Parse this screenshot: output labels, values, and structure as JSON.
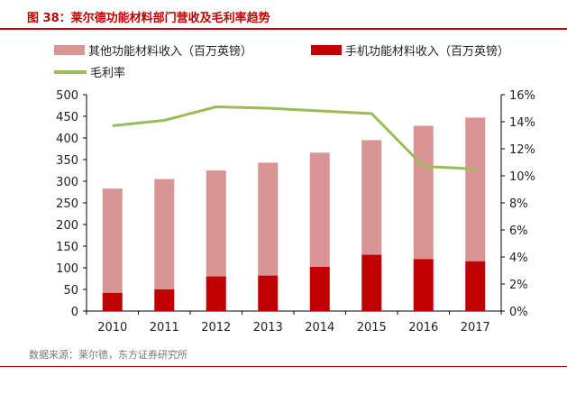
{
  "header": {
    "title": "图 38：莱尔德功能材料部门营收及毛利率趋势"
  },
  "source": "数据来源：莱尔德，东方证券研究所",
  "colors": {
    "other": "#d99594",
    "phone": "#c00000",
    "margin": "#9bbb59",
    "title": "#c00000",
    "axis": "#000000"
  },
  "chart_data": {
    "type": "bar",
    "stacked": true,
    "categories": [
      "2010",
      "2011",
      "2012",
      "2013",
      "2014",
      "2015",
      "2016",
      "2017"
    ],
    "series": [
      {
        "name": "手机功能材料收入（百万英镑）",
        "values": [
          42,
          50,
          80,
          82,
          102,
          130,
          120,
          115
        ]
      },
      {
        "name": "其他功能材料收入（百万英镑）",
        "values": [
          241,
          255,
          245,
          261,
          264,
          265,
          308,
          332
        ]
      }
    ],
    "line_series": {
      "name": "毛利率",
      "axis": "right",
      "values": [
        13.7,
        14.1,
        15.1,
        15.0,
        14.8,
        14.6,
        10.7,
        10.5
      ]
    },
    "ylim": [
      0,
      500
    ],
    "yticks": [
      0,
      50,
      100,
      150,
      200,
      250,
      300,
      350,
      400,
      450,
      500
    ],
    "y2lim": [
      0,
      16
    ],
    "y2ticks": [
      "0%",
      "2%",
      "4%",
      "6%",
      "8%",
      "10%",
      "12%",
      "14%",
      "16%"
    ],
    "legend": [
      "其他功能材料收入（百万英镑）",
      "手机功能材料收入（百万英镑）",
      "毛利率"
    ],
    "legend_position": "top",
    "grid": false
  }
}
